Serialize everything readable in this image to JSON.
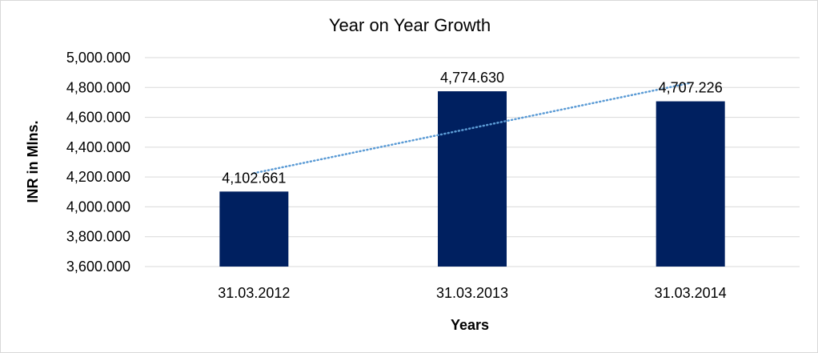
{
  "chart_data": {
    "type": "bar",
    "title": "Year on Year Growth",
    "xlabel": "Years",
    "ylabel": "INR in Mlns.",
    "categories": [
      "31.03.2012",
      "31.03.2013",
      "31.03.2014"
    ],
    "values": [
      4102.661,
      4774.63,
      4707.226
    ],
    "data_labels": [
      "4,102.661",
      "4,774.630",
      "4,707.226"
    ],
    "ylim": [
      3600,
      5000
    ],
    "yticks": [
      3600,
      3800,
      4000,
      4200,
      4400,
      4600,
      4800,
      5000
    ],
    "ytick_labels": [
      "3,600.000",
      "3,800.000",
      "4,000.000",
      "4,200.000",
      "4,400.000",
      "4,600.000",
      "4,800.000",
      "5,000.000"
    ],
    "grid": true,
    "legend": "none",
    "trendline": "linear",
    "colors": {
      "bar": "#002060",
      "trendline": "#5b9bd5",
      "grid": "#d9d9d9"
    }
  }
}
